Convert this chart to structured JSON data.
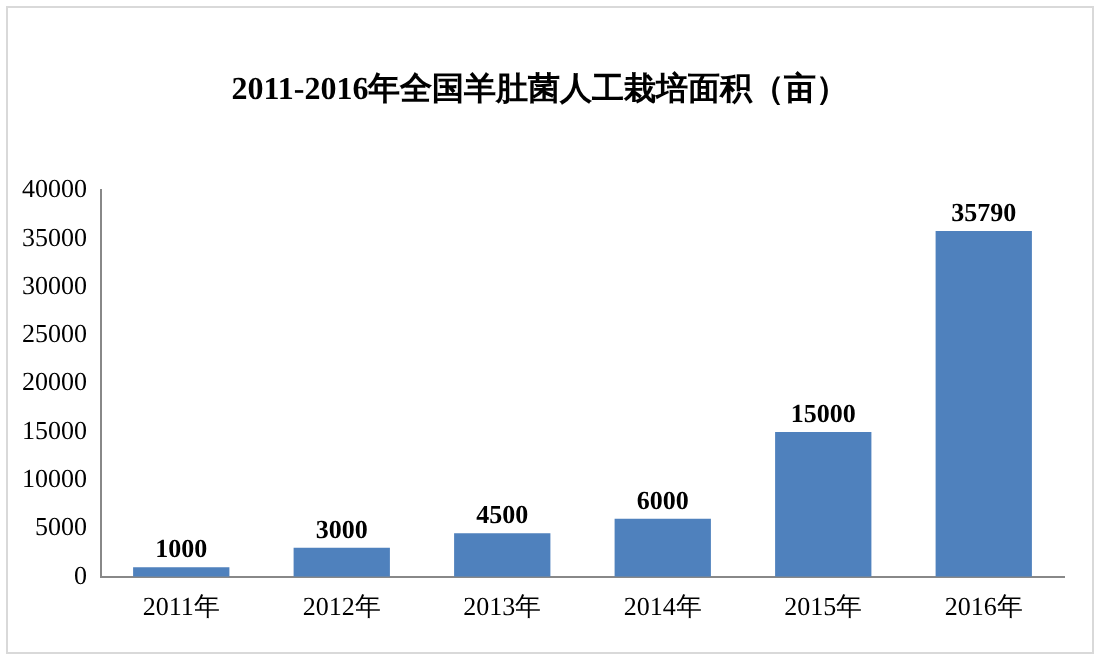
{
  "chart_data": {
    "type": "bar",
    "title": "2011-2016年全国羊肚菌人工栽培面积（亩）",
    "categories": [
      "2011年",
      "2012年",
      "2013年",
      "2014年",
      "2015年",
      "2016年"
    ],
    "values": [
      1000,
      3000,
      4500,
      6000,
      15000,
      35790
    ],
    "color": "#4f81bd",
    "ylim": [
      0,
      40000
    ],
    "yticks": [
      0,
      5000,
      10000,
      15000,
      20000,
      25000,
      30000,
      35000,
      40000
    ],
    "grid": false,
    "legend": false,
    "data_labels": true
  }
}
